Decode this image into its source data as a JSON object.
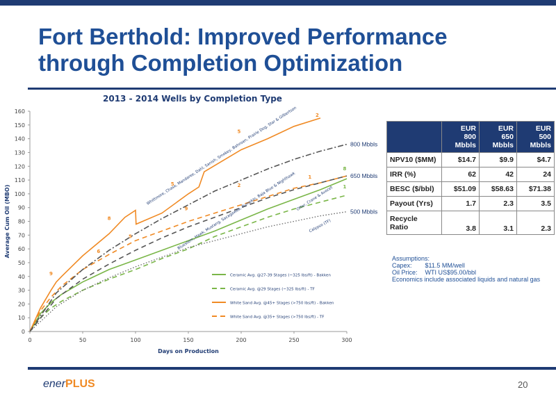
{
  "title_line1": "Fort Berthold:  Improved Performance",
  "title_line2": "through  Completion Optimization",
  "footer": {
    "logo_a": "ener",
    "logo_b": "PLUS",
    "page": "20"
  },
  "colors": {
    "navy": "#1f3b73",
    "green": "#7ab648",
    "orange": "#f08a24",
    "darkgray": "#555555",
    "dotgray": "#666666"
  },
  "chart_data": {
    "type": "line",
    "title": "2013 - 2014 Wells by Completion Type",
    "xlabel": "Days on Production",
    "ylabel": "Average Cum Oil (MBO)",
    "xlim": [
      0,
      300
    ],
    "ylim": [
      0,
      160
    ],
    "xticks": [
      "0",
      "50",
      "100",
      "150",
      "200",
      "250",
      "300"
    ],
    "yticks": [
      "0",
      "10",
      "20",
      "30",
      "40",
      "50",
      "60",
      "70",
      "80",
      "90",
      "100",
      "110",
      "120",
      "130",
      "140",
      "150",
      "160"
    ],
    "series": [
      {
        "name": "Ceramic Avg. @27-39 Stages (~325 lbs/ft) - Bakken",
        "color": "#7ab648",
        "dash": "solid",
        "x": [
          0,
          10,
          20,
          30,
          50,
          75,
          100,
          125,
          150,
          175,
          200,
          225,
          250,
          275,
          300
        ],
        "y": [
          0,
          13,
          21,
          27,
          36,
          45,
          52,
          59,
          66,
          73,
          81,
          89,
          96,
          103,
          111
        ]
      },
      {
        "name": "Ceramic Avg. @29 Stages (~325 lbs/ft) - TF",
        "color": "#7ab648",
        "dash": "dash",
        "x": [
          0,
          10,
          20,
          30,
          50,
          75,
          100,
          125,
          150,
          175,
          200,
          225,
          250,
          275,
          300
        ],
        "y": [
          0,
          10,
          17,
          22,
          30,
          38,
          45,
          53,
          60,
          69,
          76,
          83,
          89,
          94,
          99
        ]
      },
      {
        "name": "White Sand Avg. @45+ Stages (>750 lbs/ft) - Bakken",
        "color": "#f08a24",
        "dash": "solid",
        "x": [
          0,
          10,
          20,
          25,
          30,
          50,
          75,
          90,
          100,
          100.5,
          125,
          150,
          160,
          165,
          200,
          225,
          250,
          275
        ],
        "y": [
          0,
          17,
          30,
          36,
          40,
          55,
          71,
          83,
          88,
          78,
          86,
          100,
          105,
          116,
          132,
          140,
          149,
          155
        ]
      },
      {
        "name": "White Sand Avg. @35+ Stages (>750 lbs/ft) - TF",
        "color": "#f08a24",
        "dash": "dash",
        "x": [
          0,
          10,
          20,
          30,
          50,
          75,
          100,
          125,
          150,
          175,
          200,
          225,
          250,
          275,
          300
        ],
        "y": [
          0,
          15,
          25,
          33,
          45,
          56,
          66,
          73,
          80,
          86,
          92,
          98,
          104,
          108,
          113
        ]
      },
      {
        "color": "#555555",
        "dash": "dashdot",
        "endLabel": "800 Mbbls",
        "x": [
          0,
          25,
          50,
          75,
          100,
          125,
          150,
          175,
          200,
          225,
          250,
          275,
          300
        ],
        "y": [
          0,
          28,
          45,
          59,
          71,
          82,
          92,
          102,
          110,
          118,
          125,
          131,
          136
        ]
      },
      {
        "color": "#555555",
        "dash": "dash",
        "endLabel": "650 Mbbls",
        "x": [
          0,
          25,
          50,
          75,
          100,
          125,
          150,
          175,
          200,
          225,
          250,
          275,
          300
        ],
        "y": [
          0,
          24,
          38,
          49,
          59,
          68,
          76,
          83,
          90,
          97,
          103,
          108,
          113
        ]
      },
      {
        "color": "#666666",
        "dash": "dot",
        "endLabel": "500 Mbbls",
        "x": [
          0,
          25,
          50,
          75,
          100,
          125,
          150,
          175,
          200,
          225,
          250,
          275,
          300
        ],
        "y": [
          0,
          18,
          30,
          39,
          47,
          54,
          61,
          66,
          71,
          76,
          80,
          84,
          87
        ]
      }
    ],
    "pointLabels": [
      {
        "text": "9",
        "x": 20,
        "y": 41,
        "color": "#f08a24"
      },
      {
        "text": "8",
        "x": 75,
        "y": 81,
        "color": "#f08a24"
      },
      {
        "text": "6",
        "x": 65,
        "y": 57,
        "color": "#f08a24"
      },
      {
        "text": "5",
        "x": 95,
        "y": 68,
        "color": "#f08a24"
      },
      {
        "text": "9",
        "x": 148,
        "y": 88,
        "color": "#f08a24"
      },
      {
        "text": "5",
        "x": 135,
        "y": 106,
        "color": "#f08a24"
      },
      {
        "text": "5",
        "x": 198,
        "y": 144,
        "color": "#f08a24"
      },
      {
        "text": "2",
        "x": 198,
        "y": 105,
        "color": "#f08a24"
      },
      {
        "text": "2",
        "x": 272,
        "y": 156,
        "color": "#f08a24"
      },
      {
        "text": "1",
        "x": 265,
        "y": 111,
        "color": "#f08a24"
      },
      {
        "text": "8",
        "x": 298,
        "y": 117,
        "color": "#7ab648"
      },
      {
        "text": "1",
        "x": 298,
        "y": 104,
        "color": "#7ab648"
      }
    ],
    "annotations": [
      {
        "text": "Whittmore, Chase, Mandaree, Dahl, Sanish, Smokey, Bahnsen, Prairie Dog, Star & Gilbertson",
        "x": 182,
        "y": 127,
        "angle": -33
      },
      {
        "text": "Bluestem, Hawk, Mustang, Sacagawea, Pumpkin, Baja Blue & Nighthawk",
        "x": 196,
        "y": 87,
        "angle": -33
      },
      {
        "text": "Otter, Crane & Avocet",
        "x": 270,
        "y": 96,
        "angle": -33
      },
      {
        "text": "Calypso (TF)",
        "x": 275,
        "y": 76,
        "angle": -28
      }
    ],
    "legend_position": "bottom-right"
  },
  "table": {
    "headers": [
      "",
      "EUR\n800\nMbbls",
      "EUR\n650\nMbbls",
      "EUR\n500\nMbbls"
    ],
    "rows": [
      {
        "label": "NPV10 ($MM)",
        "values": [
          "$14.7",
          "$9.9",
          "$4.7"
        ]
      },
      {
        "label": "IRR (%)",
        "values": [
          "62",
          "42",
          "24"
        ]
      },
      {
        "label": "BESC ($/bbl)",
        "values": [
          "$51.09",
          "$58.63",
          "$71.38"
        ]
      },
      {
        "label": "Payout (Yrs)",
        "values": [
          "1.7",
          "2.3",
          "3.5"
        ]
      },
      {
        "label": "Recycle\nRatio",
        "values": [
          "3.8",
          "3.1",
          "2.3"
        ]
      }
    ]
  },
  "assumptions": {
    "heading": "Assumptions:",
    "capex_k": "Capex:",
    "capex_v": "$11.5 MM/well",
    "oil_k": "Oil Price:",
    "oil_v": "WTI US$95.00/bbl",
    "note": "Economics include associated liquids and natural gas"
  }
}
